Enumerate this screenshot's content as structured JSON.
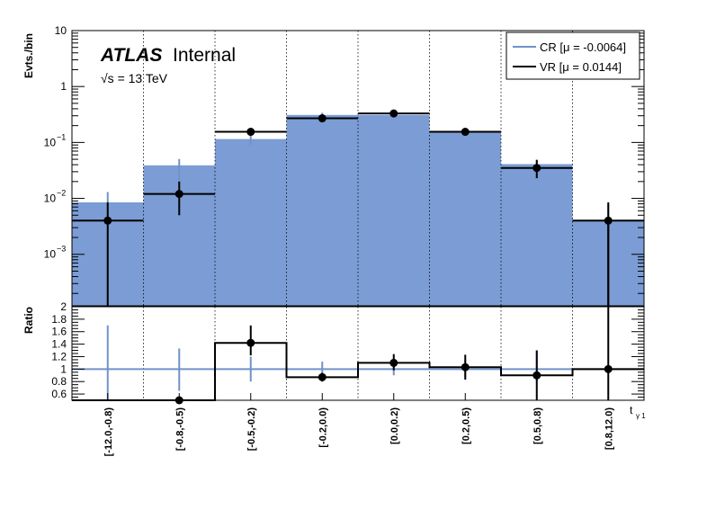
{
  "header": {
    "brand": "ATLAS",
    "label": "Internal",
    "energy": "√s = 13 TeV"
  },
  "chart_data": [
    {
      "type": "bar",
      "panel": "main",
      "ylabel": "Evts./bin",
      "xlabel": "t",
      "xlabel_sub": "γ 1",
      "yscale": "log",
      "ylim": [
        0.00012,
        10
      ],
      "yticks": [
        {
          "value": 10,
          "label": "10"
        },
        {
          "value": 1,
          "label": "1"
        },
        {
          "value": 0.1,
          "label": "10",
          "sup": "−1"
        },
        {
          "value": 0.01,
          "label": "10",
          "sup": "−2"
        },
        {
          "value": 0.001,
          "label": "10",
          "sup": "−3"
        }
      ],
      "categories": [
        "[-12.0,-0.8)",
        "[-0.8,-0.5)",
        "[-0.5,-0.2)",
        "[-0.2,0.0)",
        "[0.0,0.2)",
        "[0.2,0.5)",
        "[0.5,0.8)",
        "[0.8,12.0)"
      ],
      "grid": "vertical dotted",
      "legend_position": "top-right",
      "series": [
        {
          "name": "CR [μ = -0.0064]",
          "style": "filled histogram",
          "color": "#7b9cd4",
          "error_color": "#6f93c9",
          "values": [
            0.0085,
            0.039,
            0.115,
            0.31,
            0.31,
            0.155,
            0.041,
            0.004
          ],
          "err_low": [
            0.0085,
            0.0195,
            0.025,
            0.03,
            0.03,
            0.02,
            0.008,
            0.004
          ],
          "err_high": [
            0.0045,
            0.0115,
            0.02,
            0.03,
            0.03,
            0.02,
            0.006,
            0.004
          ]
        },
        {
          "name": "VR [μ = 0.0144]",
          "style": "points",
          "color": "#000000",
          "values": [
            0.004,
            0.012,
            0.155,
            0.27,
            0.33,
            0.155,
            0.035,
            0.004
          ],
          "err_low": [
            0.004,
            0.007,
            0.015,
            0.02,
            0.02,
            0.015,
            0.012,
            0.004
          ],
          "err_high": [
            0.0045,
            0.008,
            0.015,
            0.02,
            0.02,
            0.015,
            0.014,
            0.0045
          ]
        }
      ]
    },
    {
      "type": "bar",
      "panel": "ratio",
      "ylabel": "Ratio",
      "ylim": [
        0.5,
        2
      ],
      "yticks": [
        {
          "value": 2,
          "label": "2"
        },
        {
          "value": 1.8,
          "label": "1.8"
        },
        {
          "value": 1.6,
          "label": "1.6"
        },
        {
          "value": 1.4,
          "label": "1.4"
        },
        {
          "value": 1.2,
          "label": "1.2"
        },
        {
          "value": 1,
          "label": "1"
        },
        {
          "value": 0.8,
          "label": "0.8"
        },
        {
          "value": 0.6,
          "label": "0.6"
        }
      ],
      "categories": [
        "[-12.0,-0.8)",
        "[-0.8,-0.5)",
        "[-0.5,-0.2)",
        "[-0.2,0.0)",
        "[0.0,0.2)",
        "[0.2,0.5)",
        "[0.5,0.8)",
        "[0.8,12.0)"
      ],
      "series": [
        {
          "name": "CR",
          "style": "reference line with errors",
          "color": "#6f93c9",
          "values": [
            1,
            1,
            1,
            1,
            1,
            1,
            1,
            1
          ],
          "err_low": [
            0.5,
            0.35,
            0.2,
            0.1,
            0.1,
            0.14,
            0.2,
            0
          ],
          "err_high": [
            0.7,
            0.33,
            0.2,
            0.12,
            0.12,
            0.14,
            0.3,
            0
          ]
        },
        {
          "name": "VR",
          "style": "histogram with points",
          "color": "#000000",
          "values": [
            0.47,
            0.5,
            1.42,
            0.87,
            1.1,
            1.03,
            0.9,
            1.0
          ],
          "err_low": [
            0.47,
            0.5,
            0.2,
            0.07,
            0.12,
            0.2,
            0.4,
            1.0
          ],
          "err_high": [
            0,
            0,
            0.28,
            0.07,
            0.14,
            0.2,
            0.4,
            1.0
          ]
        }
      ]
    }
  ]
}
